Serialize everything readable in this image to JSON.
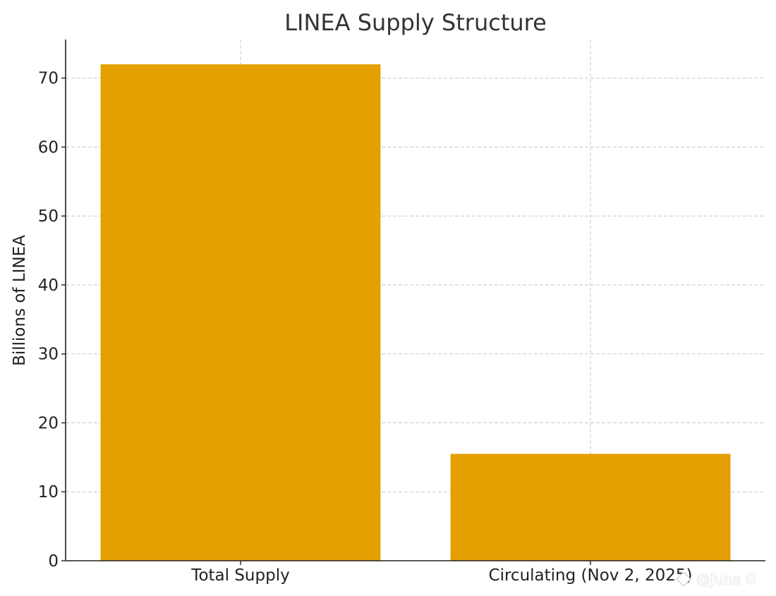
{
  "chart_data": {
    "type": "bar",
    "title": "LINEA Supply Structure",
    "xlabel": "",
    "ylabel": "Billions of LINEA",
    "categories": [
      "Total Supply",
      "Circulating (Nov 2, 2025)"
    ],
    "values": [
      72,
      15.5
    ],
    "ylim": [
      0,
      75.6
    ],
    "yticks": [
      0,
      10,
      20,
      30,
      40,
      50,
      60,
      70
    ],
    "grid": true,
    "bar_color": "#E3A000"
  },
  "watermark": {
    "text": "@Juna G",
    "icon": "diamond-logo-icon"
  }
}
